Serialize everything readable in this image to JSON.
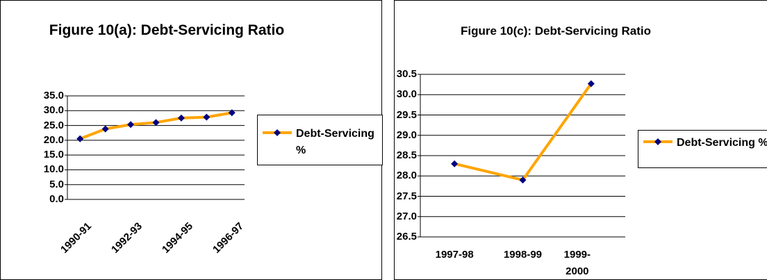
{
  "chart_data": [
    {
      "type": "line",
      "title": "Figure 10(a): Debt-Servicing Ratio",
      "categories": [
        "1990-91",
        null,
        "1992-93",
        null,
        "1994-95",
        null,
        "1996-97"
      ],
      "series": [
        {
          "name": "Debt-Servicing %",
          "color": "#ffa500",
          "marker_color": "#000080",
          "values": [
            20.5,
            23.8,
            25.3,
            26.0,
            27.5,
            27.8,
            29.3
          ]
        }
      ],
      "ylim": [
        0,
        35
      ],
      "yticks": [
        {
          "value": 0,
          "label": "0.0"
        },
        {
          "value": 5,
          "label": "5.0"
        },
        {
          "value": 10,
          "label": "10.0"
        },
        {
          "value": 15,
          "label": "15.0"
        },
        {
          "value": 20,
          "label": "20.0"
        },
        {
          "value": 25,
          "label": "25.0"
        },
        {
          "value": 30,
          "label": "30.0"
        },
        {
          "value": 35,
          "label": "35.0"
        }
      ],
      "grid": true,
      "legend": "right"
    },
    {
      "type": "line",
      "title": "Figure 10(c): Debt-Servicing Ratio",
      "categories": [
        "1997-98",
        "1998-99",
        "1999-2000"
      ],
      "series": [
        {
          "name": "Debt-Servicing %",
          "color": "#ffa500",
          "marker_color": "#000080",
          "values": [
            28.3,
            27.9,
            30.27
          ]
        }
      ],
      "ylim": [
        26.5,
        30.5
      ],
      "yticks": [
        {
          "value": 26.5,
          "label": "26.5"
        },
        {
          "value": 27,
          "label": "27.0"
        },
        {
          "value": 27.5,
          "label": "27.5"
        },
        {
          "value": 28,
          "label": "28.0"
        },
        {
          "value": 28.5,
          "label": "28.5"
        },
        {
          "value": 29,
          "label": "29.0"
        },
        {
          "value": 29.5,
          "label": "29.5"
        },
        {
          "value": 30,
          "label": "30.0"
        },
        {
          "value": 30.5,
          "label": "30.5"
        }
      ],
      "grid": true,
      "legend": "right"
    }
  ]
}
